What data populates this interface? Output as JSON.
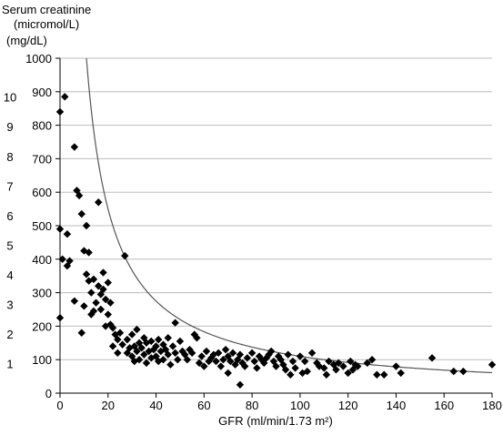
{
  "chart_data": {
    "type": "scatter",
    "title": "",
    "y_title_line1": "Serum creatinine",
    "y_title_line2": "(micromol/L)",
    "y2_unit": "(mg/dL)",
    "xlabel": "GFR (ml/min/1.73 m²)",
    "xlim": [
      0,
      180
    ],
    "ylim": [
      0,
      1000
    ],
    "x_ticks": [
      0,
      20,
      40,
      60,
      80,
      100,
      120,
      140,
      160,
      180
    ],
    "y_ticks": [
      0,
      100,
      200,
      300,
      400,
      500,
      600,
      700,
      800,
      900,
      1000
    ],
    "y2_ticks": [
      {
        "label": "1",
        "y": 88.4
      },
      {
        "label": "2",
        "y": 176.8
      },
      {
        "label": "3",
        "y": 265.2
      },
      {
        "label": "4",
        "y": 353.6
      },
      {
        "label": "5",
        "y": 442
      },
      {
        "label": "6",
        "y": 530.4
      },
      {
        "label": "7",
        "y": 618.8
      },
      {
        "label": "8",
        "y": 707.2
      },
      {
        "label": "9",
        "y": 795.6
      },
      {
        "label": "10",
        "y": 884
      }
    ],
    "grid": "horizontal",
    "curve": {
      "form": "y = k / x",
      "k": 11000
    },
    "series": [
      {
        "marker": "diamond",
        "points": [
          [
            0,
            840
          ],
          [
            2,
            885
          ],
          [
            0,
            490
          ],
          [
            1,
            400
          ],
          [
            0,
            225
          ],
          [
            3,
            380
          ],
          [
            3,
            475
          ],
          [
            4,
            395
          ],
          [
            6,
            735
          ],
          [
            7,
            605
          ],
          [
            6,
            275
          ],
          [
            8,
            590
          ],
          [
            9,
            535
          ],
          [
            9,
            180
          ],
          [
            10,
            425
          ],
          [
            10,
            260
          ],
          [
            11,
            500
          ],
          [
            11,
            355
          ],
          [
            12,
            420
          ],
          [
            12,
            335
          ],
          [
            13,
            300
          ],
          [
            13,
            235
          ],
          [
            14,
            245
          ],
          [
            14,
            340
          ],
          [
            15,
            270
          ],
          [
            16,
            570
          ],
          [
            16,
            320
          ],
          [
            17,
            295
          ],
          [
            17,
            250
          ],
          [
            18,
            360
          ],
          [
            18,
            310
          ],
          [
            19,
            280
          ],
          [
            19,
            200
          ],
          [
            20,
            330
          ],
          [
            20,
            235
          ],
          [
            21,
            205
          ],
          [
            21,
            270
          ],
          [
            22,
            195
          ],
          [
            22,
            140
          ],
          [
            23,
            175
          ],
          [
            24,
            120
          ],
          [
            24,
            160
          ],
          [
            25,
            180
          ],
          [
            26,
            145
          ],
          [
            27,
            410
          ],
          [
            28,
            120
          ],
          [
            28,
            160
          ],
          [
            29,
            135
          ],
          [
            30,
            175
          ],
          [
            30,
            110
          ],
          [
            31,
            140
          ],
          [
            31,
            95
          ],
          [
            32,
            190
          ],
          [
            32,
            125
          ],
          [
            33,
            150
          ],
          [
            33,
            100
          ],
          [
            34,
            135
          ],
          [
            35,
            115
          ],
          [
            35,
            165
          ],
          [
            36,
            90
          ],
          [
            36,
            150
          ],
          [
            37,
            125
          ],
          [
            38,
            155
          ],
          [
            38,
            105
          ],
          [
            39,
            130
          ],
          [
            40,
            140
          ],
          [
            40,
            110
          ],
          [
            41,
            160
          ],
          [
            41,
            95
          ],
          [
            42,
            125
          ],
          [
            43,
            145
          ],
          [
            43,
            100
          ],
          [
            44,
            130
          ],
          [
            45,
            165
          ],
          [
            45,
            115
          ],
          [
            46,
            85
          ],
          [
            47,
            140
          ],
          [
            48,
            120
          ],
          [
            48,
            210
          ],
          [
            49,
            100
          ],
          [
            50,
            155
          ],
          [
            51,
            125
          ],
          [
            52,
            115
          ],
          [
            53,
            100
          ],
          [
            54,
            130
          ],
          [
            55,
            120
          ],
          [
            56,
            175
          ],
          [
            57,
            165
          ],
          [
            58,
            90
          ],
          [
            59,
            110
          ],
          [
            60,
            80
          ],
          [
            61,
            125
          ],
          [
            62,
            95
          ],
          [
            63,
            105
          ],
          [
            64,
            115
          ],
          [
            65,
            95
          ],
          [
            66,
            120
          ],
          [
            67,
            80
          ],
          [
            68,
            100
          ],
          [
            69,
            130
          ],
          [
            70,
            60
          ],
          [
            70,
            110
          ],
          [
            71,
            95
          ],
          [
            72,
            120
          ],
          [
            73,
            85
          ],
          [
            74,
            100
          ],
          [
            75,
            25
          ],
          [
            75,
            115
          ],
          [
            76,
            90
          ],
          [
            77,
            80
          ],
          [
            78,
            105
          ],
          [
            80,
            120
          ],
          [
            81,
            95
          ],
          [
            82,
            75
          ],
          [
            83,
            110
          ],
          [
            84,
            100
          ],
          [
            85,
            90
          ],
          [
            86,
            105
          ],
          [
            87,
            115
          ],
          [
            88,
            125
          ],
          [
            89,
            95
          ],
          [
            90,
            80
          ],
          [
            91,
            110
          ],
          [
            92,
            100
          ],
          [
            93,
            85
          ],
          [
            94,
            70
          ],
          [
            95,
            115
          ],
          [
            96,
            55
          ],
          [
            97,
            95
          ],
          [
            98,
            75
          ],
          [
            100,
            110
          ],
          [
            101,
            60
          ],
          [
            102,
            95
          ],
          [
            103,
            65
          ],
          [
            105,
            120
          ],
          [
            107,
            90
          ],
          [
            108,
            80
          ],
          [
            110,
            75
          ],
          [
            111,
            55
          ],
          [
            112,
            95
          ],
          [
            114,
            85
          ],
          [
            115,
            70
          ],
          [
            116,
            90
          ],
          [
            118,
            80
          ],
          [
            120,
            60
          ],
          [
            121,
            95
          ],
          [
            122,
            70
          ],
          [
            123,
            85
          ],
          [
            124,
            80
          ],
          [
            128,
            90
          ],
          [
            130,
            100
          ],
          [
            132,
            55
          ],
          [
            135,
            55
          ],
          [
            140,
            80
          ],
          [
            142,
            60
          ],
          [
            155,
            105
          ],
          [
            164,
            65
          ],
          [
            168,
            65
          ],
          [
            180,
            85
          ]
        ]
      }
    ]
  }
}
